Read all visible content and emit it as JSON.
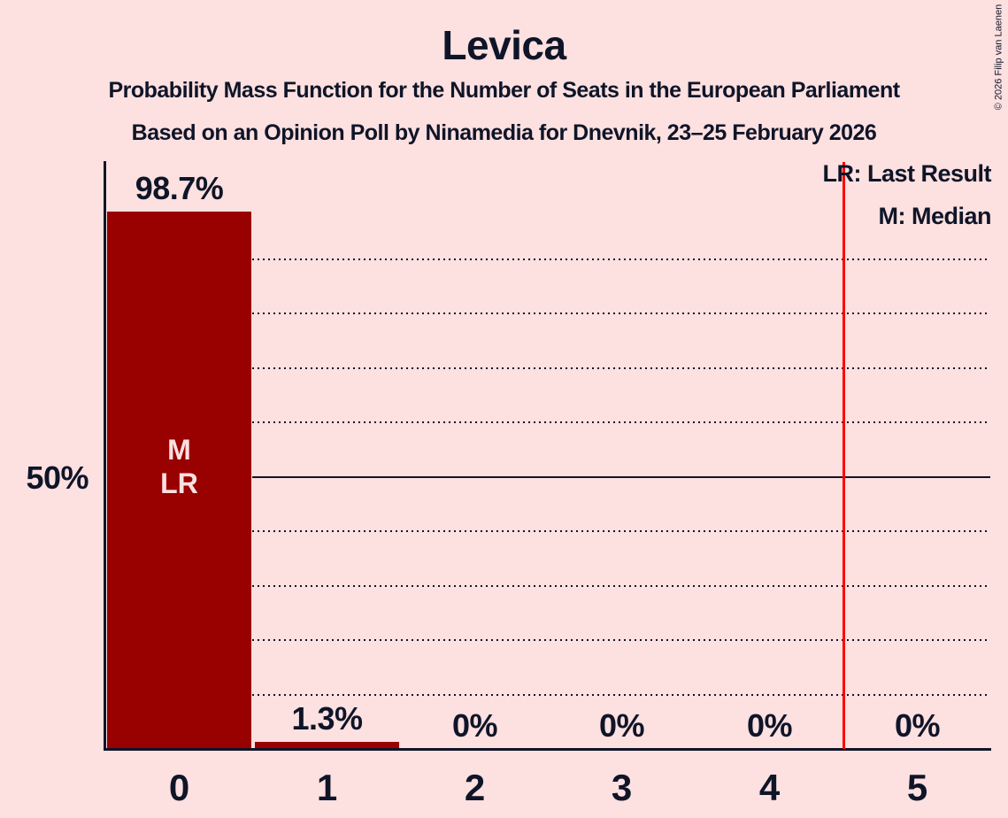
{
  "page": {
    "background_color": "#FDE0E0",
    "text_color": "#0F1528",
    "copyright": "© 2026 Filip van Laenen"
  },
  "header": {
    "title": "Levica",
    "subtitle_line1": "Probability Mass Function for the Number of Seats in the European Parliament",
    "subtitle_line2": "Based on an Opinion Poll by Ninamedia for Dnevnik, 23–25 February 2026"
  },
  "legend": {
    "lr_label": "LR: Last Result",
    "m_label": "M: Median"
  },
  "chart_data": {
    "type": "bar",
    "title": "Levica",
    "categories": [
      "0",
      "1",
      "2",
      "3",
      "4",
      "5"
    ],
    "values": [
      98.7,
      1.3,
      0,
      0,
      0,
      0
    ],
    "value_labels": [
      "98.7%",
      "1.3%",
      "0%",
      "0%",
      "0%",
      "0%"
    ],
    "xlabel": "",
    "ylabel": "",
    "bar_color": "#990000",
    "background_color": "#FDE0E0",
    "ink_color": "#0F1528",
    "ylim": [
      0,
      107.6
    ],
    "y_axis": {
      "tick_label": "50%",
      "tick_pct": 50,
      "solid_line_pct": 50,
      "dotted_gridline_pcts": [
        10,
        20,
        30,
        40,
        60,
        70,
        80,
        90
      ],
      "grid_on": true
    },
    "bar_annotations": [
      {
        "category_index": 0,
        "lines": "M\nLR"
      }
    ],
    "red_line": {
      "x_position_seats": 4.5,
      "color": "#FF0000"
    },
    "legend_entries": [
      "LR: Last Result",
      "M: Median"
    ],
    "legend_position": "top-right"
  }
}
